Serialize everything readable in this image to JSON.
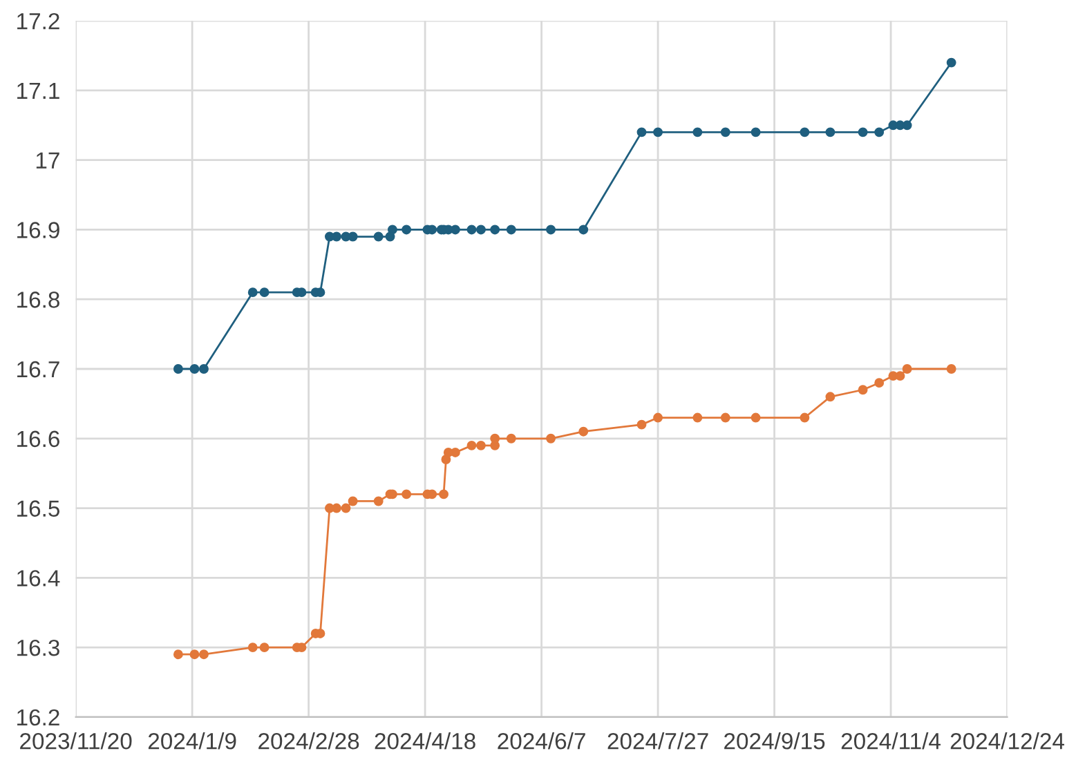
{
  "chart_data": {
    "type": "line",
    "series": [
      {
        "color": "#1f5f7f",
        "x": [
          "2024-01-03",
          "2024-01-10",
          "2024-01-14",
          "2024-02-04",
          "2024-02-09",
          "2024-02-23",
          "2024-02-25",
          "2024-03-02",
          "2024-03-04",
          "2024-03-08",
          "2024-03-11",
          "2024-03-15",
          "2024-03-18",
          "2024-03-29",
          "2024-04-03",
          "2024-04-04",
          "2024-04-10",
          "2024-04-19",
          "2024-04-21",
          "2024-04-25",
          "2024-04-26",
          "2024-04-28",
          "2024-05-01",
          "2024-05-08",
          "2024-05-12",
          "2024-05-18",
          "2024-05-25",
          "2024-06-11",
          "2024-06-25",
          "2024-07-20",
          "2024-07-27",
          "2024-08-13",
          "2024-08-25",
          "2024-09-07",
          "2024-09-28",
          "2024-10-09",
          "2024-10-23",
          "2024-10-30",
          "2024-11-05",
          "2024-11-08",
          "2024-11-11",
          "2024-11-30"
        ],
        "values": [
          16.7,
          16.7,
          16.7,
          16.81,
          16.81,
          16.81,
          16.81,
          16.81,
          16.81,
          16.89,
          16.89,
          16.89,
          16.89,
          16.89,
          16.89,
          16.9,
          16.9,
          16.9,
          16.9,
          16.9,
          16.9,
          16.9,
          16.9,
          16.9,
          16.9,
          16.9,
          16.9,
          16.9,
          16.9,
          17.04,
          17.04,
          17.04,
          17.04,
          17.04,
          17.04,
          17.04,
          17.04,
          17.04,
          17.05,
          17.05,
          17.05,
          17.14
        ]
      },
      {
        "color": "#e2783a",
        "x": [
          "2024-01-03",
          "2024-01-10",
          "2024-01-14",
          "2024-02-04",
          "2024-02-09",
          "2024-02-23",
          "2024-02-25",
          "2024-03-02",
          "2024-03-04",
          "2024-03-08",
          "2024-03-11",
          "2024-03-15",
          "2024-03-18",
          "2024-03-29",
          "2024-04-03",
          "2024-04-04",
          "2024-04-10",
          "2024-04-19",
          "2024-04-21",
          "2024-04-26",
          "2024-04-27",
          "2024-04-28",
          "2024-05-01",
          "2024-05-08",
          "2024-05-12",
          "2024-05-18",
          "2024-05-18",
          "2024-05-25",
          "2024-06-11",
          "2024-06-25",
          "2024-07-20",
          "2024-07-27",
          "2024-08-13",
          "2024-08-25",
          "2024-09-07",
          "2024-09-28",
          "2024-10-09",
          "2024-10-23",
          "2024-10-30",
          "2024-11-05",
          "2024-11-08",
          "2024-11-11",
          "2024-11-30"
        ],
        "values": [
          16.29,
          16.29,
          16.29,
          16.3,
          16.3,
          16.3,
          16.3,
          16.32,
          16.32,
          16.5,
          16.5,
          16.5,
          16.51,
          16.51,
          16.52,
          16.52,
          16.52,
          16.52,
          16.52,
          16.52,
          16.57,
          16.58,
          16.58,
          16.59,
          16.59,
          16.59,
          16.6,
          16.6,
          16.6,
          16.61,
          16.62,
          16.63,
          16.63,
          16.63,
          16.63,
          16.63,
          16.66,
          16.67,
          16.68,
          16.69,
          16.69,
          16.7,
          16.7
        ]
      }
    ],
    "xlim": [
      "2023-11-20",
      "2024-12-24"
    ],
    "xticks": [
      {
        "value": "2023-11-20",
        "label": "2023/11/20"
      },
      {
        "value": "2024-01-09",
        "label": "2024/1/9"
      },
      {
        "value": "2024-02-28",
        "label": "2024/2/28"
      },
      {
        "value": "2024-04-18",
        "label": "2024/4/18"
      },
      {
        "value": "2024-06-07",
        "label": "2024/6/7"
      },
      {
        "value": "2024-07-27",
        "label": "2024/7/27"
      },
      {
        "value": "2024-09-15",
        "label": "2024/9/15"
      },
      {
        "value": "2024-11-04",
        "label": "2024/11/4"
      },
      {
        "value": "2024-12-24",
        "label": "2024/12/24"
      }
    ],
    "ylim": [
      16.2,
      17.2
    ],
    "yticks": [
      16.2,
      16.3,
      16.4,
      16.5,
      16.6,
      16.7,
      16.8,
      16.9,
      17,
      17.1,
      17.2
    ],
    "grid": true,
    "marker": "circle",
    "line_style": "solid"
  }
}
